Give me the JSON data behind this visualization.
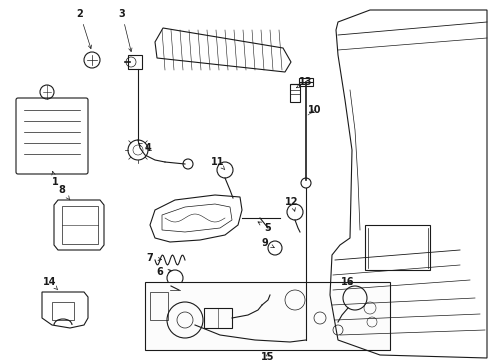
{
  "bg_color": "#ffffff",
  "line_color": "#1a1a1a",
  "figsize": [
    4.89,
    3.6
  ],
  "dpi": 100,
  "xlim": [
    0,
    489
  ],
  "ylim": [
    360,
    0
  ]
}
